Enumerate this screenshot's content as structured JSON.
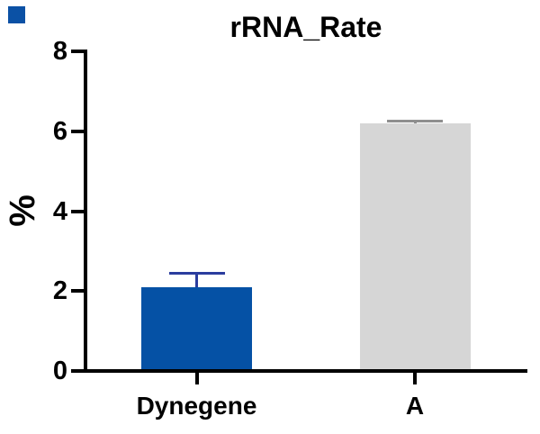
{
  "chart_data": {
    "type": "bar",
    "title": "rRNA_Rate",
    "ylabel": "%",
    "categories": [
      "Dynegene",
      "A"
    ],
    "values": [
      2.1,
      6.2
    ],
    "errors": [
      0.35,
      0.05
    ],
    "bar_colors": [
      "#0551A5",
      "#D6D6D6"
    ],
    "error_colors": [
      "#2B3D9E",
      "#8F8F8F"
    ],
    "ylim": [
      0,
      8
    ],
    "yticks": [
      0,
      2,
      4,
      6,
      8
    ],
    "grid": false,
    "legend": "none",
    "axis_color": "#000000",
    "text_color": "#000000"
  },
  "decoration": {
    "corner_square_color": "#0B51A5"
  }
}
